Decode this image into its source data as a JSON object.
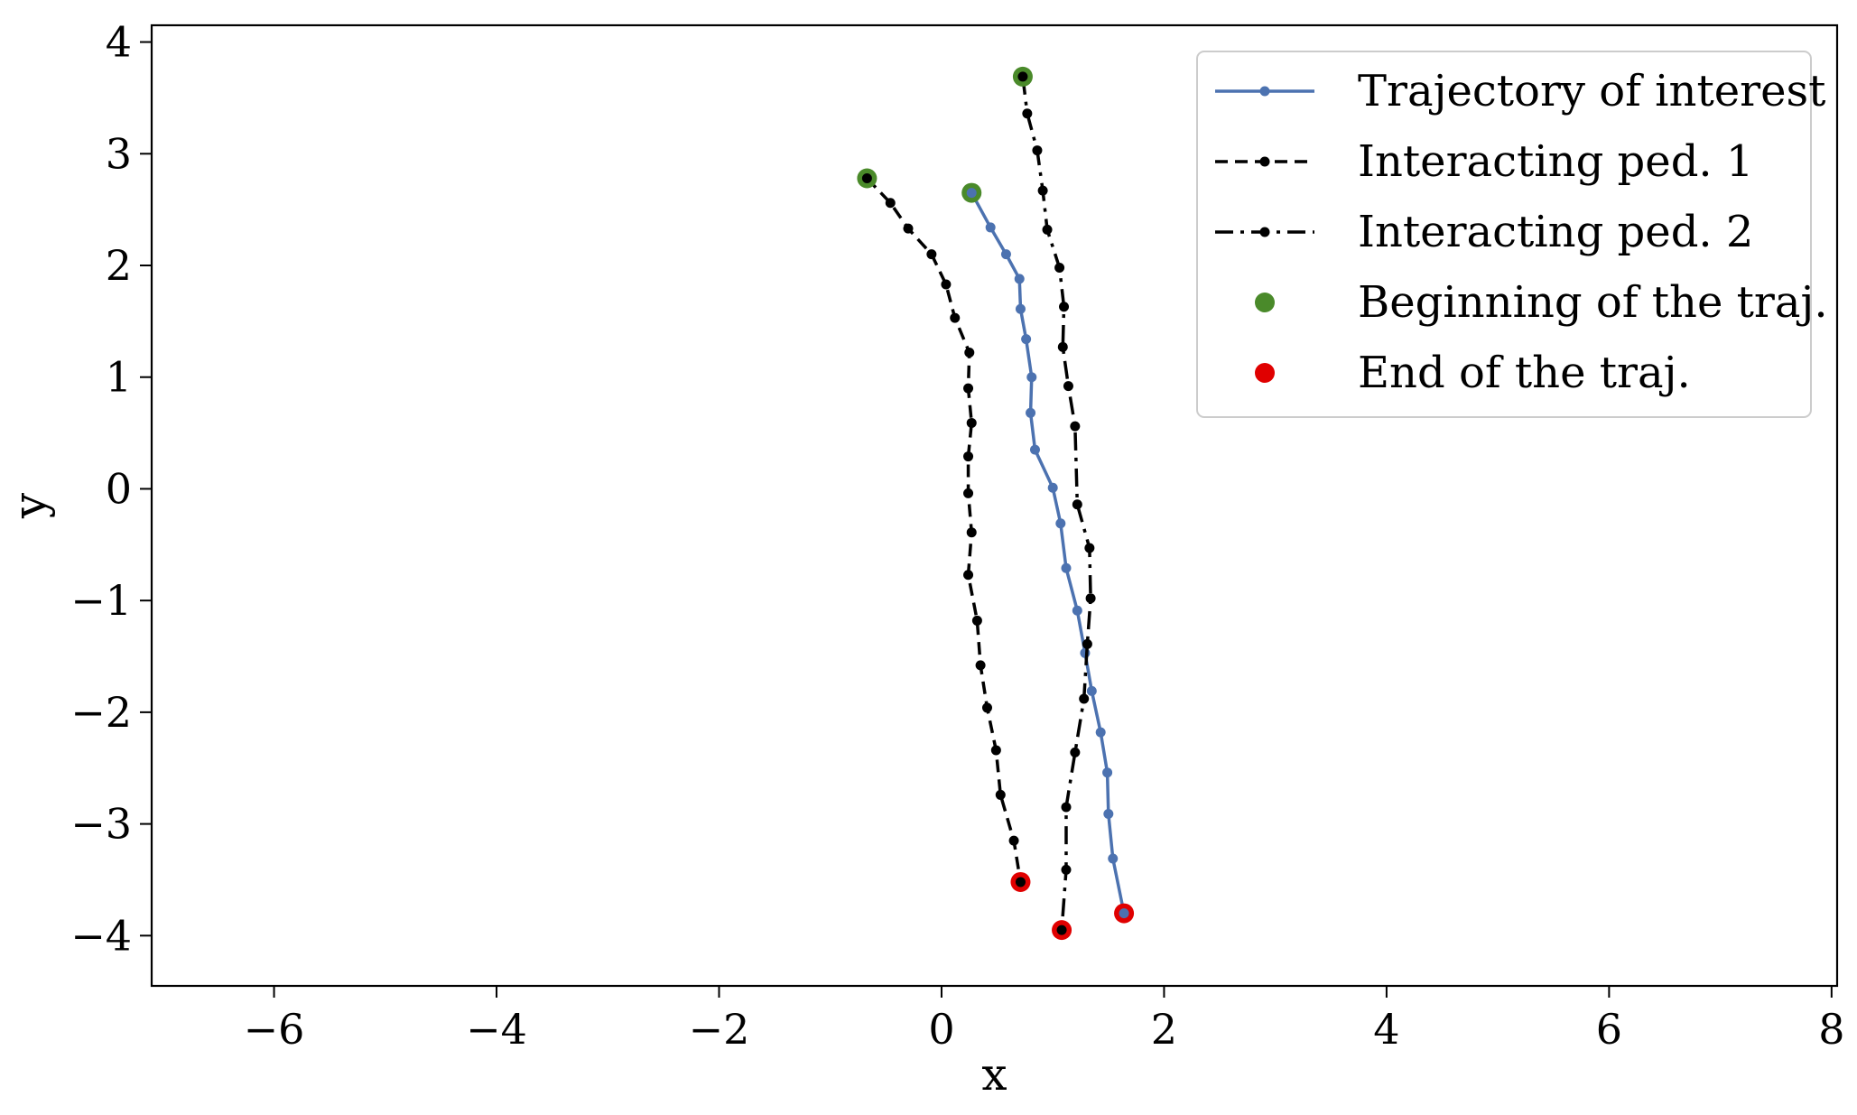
{
  "chart_data": {
    "type": "line",
    "title": "",
    "xlabel": "x",
    "ylabel": "y",
    "xlim": [
      -7.1,
      8.05
    ],
    "ylim": [
      -4.45,
      4.15
    ],
    "xticks": [
      -6,
      -4,
      -2,
      0,
      2,
      4,
      6,
      8
    ],
    "yticks": [
      -4,
      -3,
      -2,
      -1,
      0,
      1,
      2,
      3,
      4
    ],
    "xtick_labels": [
      "−6",
      "−4",
      "−2",
      "0",
      "2",
      "4",
      "6",
      "8"
    ],
    "ytick_labels": [
      "−4",
      "−3",
      "−2",
      "−1",
      "0",
      "1",
      "2",
      "3",
      "4"
    ],
    "grid": false,
    "legend_position": "top-right",
    "series": [
      {
        "name": "Trajectory of interest",
        "style": "solid",
        "color": "#4c72b0",
        "x": [
          0.27,
          0.44,
          0.58,
          0.7,
          0.71,
          0.76,
          0.81,
          0.8,
          0.84,
          1.0,
          1.07,
          1.12,
          1.22,
          1.29,
          1.35,
          1.43,
          1.49,
          1.5,
          1.54,
          1.64
        ],
        "y": [
          2.65,
          2.34,
          2.1,
          1.88,
          1.61,
          1.34,
          1.0,
          0.68,
          0.35,
          0.01,
          -0.31,
          -0.71,
          -1.09,
          -1.47,
          -1.81,
          -2.18,
          -2.54,
          -2.91,
          -3.31,
          -3.8
        ]
      },
      {
        "name": "Interacting ped. 1",
        "style": "dashed",
        "color": "#000000",
        "x": [
          -0.67,
          -0.46,
          -0.3,
          -0.09,
          0.04,
          0.12,
          0.25,
          0.24,
          0.27,
          0.24,
          0.24,
          0.27,
          0.24,
          0.32,
          0.35,
          0.41,
          0.49,
          0.53,
          0.65,
          0.71
        ],
        "y": [
          2.78,
          2.56,
          2.33,
          2.1,
          1.83,
          1.53,
          1.22,
          0.9,
          0.59,
          0.29,
          -0.04,
          -0.39,
          -0.77,
          -1.18,
          -1.58,
          -1.96,
          -2.34,
          -2.74,
          -3.15,
          -3.52
        ]
      },
      {
        "name": "Interacting ped. 2",
        "style": "dashdot",
        "color": "#000000",
        "x": [
          0.73,
          0.77,
          0.86,
          0.91,
          0.95,
          1.06,
          1.1,
          1.09,
          1.14,
          1.2,
          1.22,
          1.33,
          1.34,
          1.31,
          1.28,
          1.2,
          1.12,
          1.12,
          1.08
        ],
        "y": [
          3.69,
          3.36,
          3.03,
          2.67,
          2.32,
          1.98,
          1.63,
          1.27,
          0.92,
          0.56,
          -0.14,
          -0.53,
          -0.98,
          -1.39,
          -1.88,
          -2.36,
          -2.85,
          -3.41,
          -3.95
        ]
      }
    ],
    "markers": [
      {
        "name": "Beginning of the traj.",
        "color": "#4a8a2a",
        "points": [
          [
            0.27,
            2.65
          ],
          [
            -0.67,
            2.78
          ],
          [
            0.73,
            3.69
          ]
        ]
      },
      {
        "name": "End of the traj.",
        "color": "#e00000",
        "points": [
          [
            1.64,
            -3.8
          ],
          [
            0.71,
            -3.52
          ],
          [
            1.08,
            -3.95
          ]
        ]
      }
    ]
  }
}
